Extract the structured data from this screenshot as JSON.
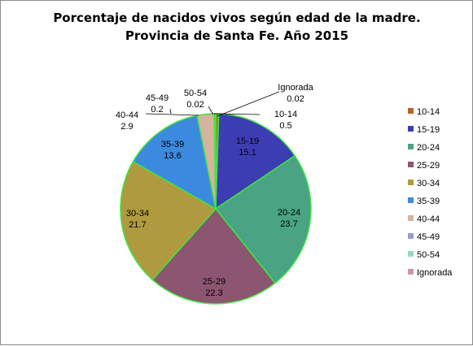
{
  "chart_data": {
    "type": "pie",
    "title": "Porcentaje de nacidos vivos según edad de la madre. Provincia de Santa Fe. Año 2015",
    "legend_placement": "right",
    "slices": [
      {
        "label": "10-14",
        "value": 0.5,
        "value_text": "0.5",
        "color": "#b5652a"
      },
      {
        "label": "15-19",
        "value": 15.1,
        "value_text": "15.1",
        "color": "#3d3db3"
      },
      {
        "label": "20-24",
        "value": 23.7,
        "value_text": "23.7",
        "color": "#4aa383"
      },
      {
        "label": "25-29",
        "value": 22.3,
        "value_text": "22.3",
        "color": "#8c5570"
      },
      {
        "label": "30-34",
        "value": 21.7,
        "value_text": "21.7",
        "color": "#b09a40"
      },
      {
        "label": "35-39",
        "value": 13.6,
        "value_text": "13.6",
        "color": "#3c8ae0"
      },
      {
        "label": "40-44",
        "value": 2.9,
        "value_text": "2.9",
        "color": "#d6b3a0"
      },
      {
        "label": "45-49",
        "value": 0.2,
        "value_text": "0.2",
        "color": "#9999dd"
      },
      {
        "label": "50-54",
        "value": 0.02,
        "value_text": "0.02",
        "color": "#99d6c0"
      },
      {
        "label": "Ignorada",
        "value": 0.02,
        "value_text": "0.02",
        "color": "#cc99aa"
      }
    ],
    "slice_edge_color": "#3ee63e"
  }
}
